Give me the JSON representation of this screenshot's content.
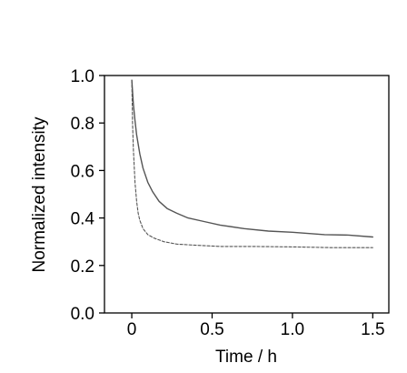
{
  "chart_data": {
    "type": "line",
    "xlabel": "Time / h",
    "ylabel": "Normalized intensity",
    "xlim": [
      -0.17,
      1.6
    ],
    "ylim": [
      0.0,
      1.0
    ],
    "xticks": [
      0,
      0.5,
      1.0,
      1.5
    ],
    "xtick_labels": [
      "0",
      "0.5",
      "1.0",
      "1.5"
    ],
    "yticks": [
      0.0,
      0.2,
      0.4,
      0.6,
      0.8,
      1.0
    ],
    "ytick_labels": [
      "0.0",
      "0.2",
      "0.4",
      "0.6",
      "0.8",
      "1.0"
    ],
    "grid": false,
    "legend": "none",
    "series": [
      {
        "style": "solid",
        "color": "#555555",
        "x": [
          0,
          0.01,
          0.02,
          0.03,
          0.05,
          0.07,
          0.1,
          0.13,
          0.17,
          0.22,
          0.28,
          0.35,
          0.45,
          0.55,
          0.7,
          0.85,
          1.0,
          1.2,
          1.35,
          1.5
        ],
        "y": [
          0.98,
          0.88,
          0.81,
          0.75,
          0.67,
          0.61,
          0.55,
          0.51,
          0.47,
          0.44,
          0.42,
          0.4,
          0.385,
          0.37,
          0.355,
          0.345,
          0.34,
          0.33,
          0.328,
          0.32
        ]
      },
      {
        "style": "dashed",
        "color": "#555555",
        "x": [
          0,
          0.005,
          0.01,
          0.02,
          0.03,
          0.04,
          0.05,
          0.07,
          0.1,
          0.14,
          0.2,
          0.28,
          0.4,
          0.55,
          0.75,
          1.0,
          1.25,
          1.5
        ],
        "y": [
          0.98,
          0.8,
          0.69,
          0.55,
          0.47,
          0.42,
          0.39,
          0.355,
          0.33,
          0.315,
          0.3,
          0.29,
          0.285,
          0.28,
          0.28,
          0.278,
          0.275,
          0.275
        ]
      }
    ]
  }
}
